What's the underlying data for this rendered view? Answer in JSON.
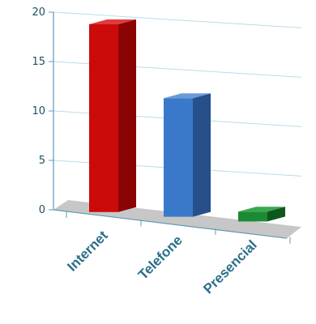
{
  "chart_data": {
    "type": "bar",
    "categories": [
      "Internet",
      "Telefone",
      "Presencial"
    ],
    "values": [
      19,
      12,
      1
    ],
    "ylim": [
      0,
      20
    ],
    "yticks": [
      0,
      5,
      10,
      15,
      20
    ],
    "grid": true,
    "style": "3d",
    "colors": {
      "Internet": {
        "front": "#cc0a0a",
        "side": "#8a0404",
        "top": "#e23a3a"
      },
      "Telefone": {
        "front": "#3a78c9",
        "side": "#274f8a",
        "top": "#6a9ad8"
      },
      "Presencial": {
        "front": "#1c8a34",
        "side": "#10561f",
        "top": "#3aa84f"
      }
    },
    "grid_color": "#b9dcea",
    "axis_color": "#5e9bb3",
    "floor_color": "#c7c7c7"
  }
}
